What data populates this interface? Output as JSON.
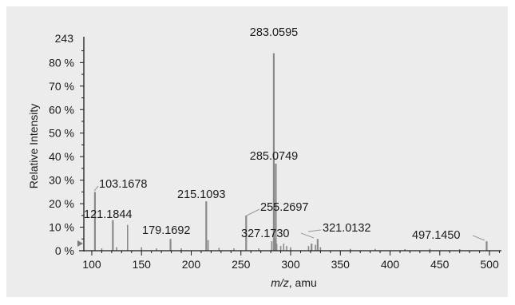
{
  "chart_data": {
    "type": "bar",
    "xlabel_italic": "m/z",
    "xlabel_rest": ", amu",
    "ylabel": "Relative Intensity",
    "y_top_label": "243",
    "xlim": [
      92,
      512
    ],
    "ylim": [
      0,
      92
    ],
    "x_ticks": [
      100,
      150,
      200,
      250,
      300,
      350,
      400,
      450,
      500
    ],
    "x_tick_labels": [
      "100",
      "150",
      "200",
      "250",
      "300",
      "350",
      "400",
      "450",
      "500"
    ],
    "y_ticks": [
      0,
      10,
      20,
      30,
      40,
      50,
      60,
      70,
      80
    ],
    "y_tick_labels": [
      "0 %",
      "10 %",
      "20 %",
      "30 %",
      "40 %",
      "50 %",
      "60 %",
      "70 %",
      "80 %"
    ],
    "labeled_peaks": [
      {
        "mz": 283.0595,
        "intensity": 84,
        "label": "283.0595"
      },
      {
        "mz": 285.0749,
        "intensity": 37,
        "label": "285.0749"
      },
      {
        "mz": 103.1678,
        "intensity": 25,
        "label": "103.1678"
      },
      {
        "mz": 121.1844,
        "intensity": 13,
        "label": "121.1844"
      },
      {
        "mz": 179.1692,
        "intensity": 5,
        "label": "179.1692"
      },
      {
        "mz": 215.1093,
        "intensity": 21,
        "label": "215.1093"
      },
      {
        "mz": 255.2697,
        "intensity": 15,
        "label": "255.2697"
      },
      {
        "mz": 327.173,
        "intensity": 5,
        "label": "327.1730"
      },
      {
        "mz": 321.0132,
        "intensity": 3,
        "label": "321.0132"
      },
      {
        "mz": 497.145,
        "intensity": 4,
        "label": "497.1450"
      }
    ],
    "other_peaks": [
      {
        "mz": 136,
        "intensity": 11
      },
      {
        "mz": 217,
        "intensity": 4.5
      },
      {
        "mz": 281,
        "intensity": 4
      },
      {
        "mz": 284,
        "intensity": 5
      },
      {
        "mz": 286,
        "intensity": 3
      },
      {
        "mz": 290,
        "intensity": 2
      },
      {
        "mz": 293,
        "intensity": 3
      },
      {
        "mz": 296,
        "intensity": 2
      },
      {
        "mz": 300,
        "intensity": 1.5
      },
      {
        "mz": 318,
        "intensity": 2
      },
      {
        "mz": 325,
        "intensity": 2.5
      },
      {
        "mz": 330,
        "intensity": 1.5
      },
      {
        "mz": 110,
        "intensity": 1
      },
      {
        "mz": 125,
        "intensity": 1.5
      },
      {
        "mz": 150,
        "intensity": 1.5
      },
      {
        "mz": 165,
        "intensity": 1
      },
      {
        "mz": 190,
        "intensity": 1
      },
      {
        "mz": 228,
        "intensity": 1.2
      },
      {
        "mz": 243,
        "intensity": 1
      },
      {
        "mz": 268,
        "intensity": 1
      },
      {
        "mz": 360,
        "intensity": 0.8
      },
      {
        "mz": 385,
        "intensity": 0.8
      },
      {
        "mz": 415,
        "intensity": 0.7
      },
      {
        "mz": 440,
        "intensity": 0.8
      },
      {
        "mz": 470,
        "intensity": 0.7
      }
    ],
    "colors": {
      "peak": "#8a8a8a",
      "axis": "#1a1a1a",
      "background": "#ececec"
    }
  }
}
